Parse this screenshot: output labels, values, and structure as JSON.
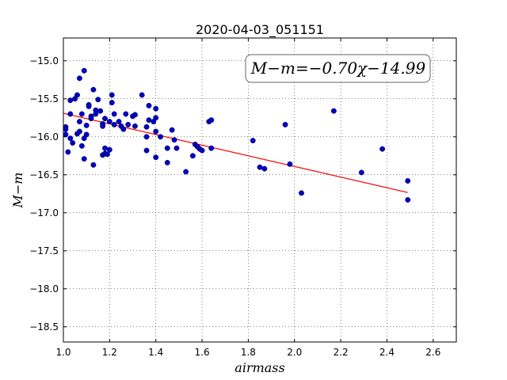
{
  "chart_data": {
    "type": "scatter",
    "title": "2020-04-03_051151",
    "xlabel": "airmass",
    "ylabel": "M−m",
    "xlim": [
      1.0,
      2.7
    ],
    "ylim": [
      -14.7,
      -18.7
    ],
    "y_inverted": true,
    "grid": true,
    "x_ticks": [
      1.0,
      1.2,
      1.4,
      1.6,
      1.8,
      2.0,
      2.2,
      2.4,
      2.6
    ],
    "x_tick_labels": [
      "1.0",
      "1.2",
      "1.4",
      "1.6",
      "1.8",
      "2.0",
      "2.2",
      "2.4",
      "2.6"
    ],
    "y_ticks": [
      -15.0,
      -15.5,
      -16.0,
      -16.5,
      -17.0,
      -17.5,
      -18.0,
      -18.5
    ],
    "y_tick_labels": [
      "−15.0",
      "−15.5",
      "−16.0",
      "−16.5",
      "−17.0",
      "−17.5",
      "−18.0",
      "−18.5"
    ],
    "annotation": "M−m=−0.70χ−14.99",
    "fit": {
      "slope": -0.7,
      "intercept": -14.99,
      "x_range": [
        1.0,
        2.49
      ],
      "color": "#ff0000"
    },
    "series": [
      {
        "marker_color": "#0000cc",
        "points": [
          [
            1.01,
            -15.87
          ],
          [
            1.01,
            -15.9
          ],
          [
            1.01,
            -15.97
          ],
          [
            1.02,
            -16.2
          ],
          [
            1.03,
            -15.52
          ],
          [
            1.03,
            -15.7
          ],
          [
            1.03,
            -16.02
          ],
          [
            1.04,
            -16.08
          ],
          [
            1.05,
            -15.5
          ],
          [
            1.06,
            -15.96
          ],
          [
            1.06,
            -15.45
          ],
          [
            1.07,
            -15.23
          ],
          [
            1.07,
            -15.8
          ],
          [
            1.07,
            -15.93
          ],
          [
            1.08,
            -16.12
          ],
          [
            1.08,
            -15.7
          ],
          [
            1.09,
            -16.02
          ],
          [
            1.09,
            -16.29
          ],
          [
            1.09,
            -15.13
          ],
          [
            1.1,
            -15.85
          ],
          [
            1.1,
            -15.97
          ],
          [
            1.11,
            -15.58
          ],
          [
            1.11,
            -15.6
          ],
          [
            1.12,
            -15.73
          ],
          [
            1.12,
            -15.76
          ],
          [
            1.13,
            -15.38
          ],
          [
            1.13,
            -16.37
          ],
          [
            1.14,
            -15.65
          ],
          [
            1.14,
            -15.7
          ],
          [
            1.15,
            -15.51
          ],
          [
            1.16,
            -15.66
          ],
          [
            1.17,
            -15.83
          ],
          [
            1.17,
            -15.86
          ],
          [
            1.17,
            -16.24
          ],
          [
            1.18,
            -15.76
          ],
          [
            1.18,
            -16.15
          ],
          [
            1.18,
            -16.22
          ],
          [
            1.19,
            -16.23
          ],
          [
            1.2,
            -16.17
          ],
          [
            1.2,
            -15.8
          ],
          [
            1.21,
            -15.45
          ],
          [
            1.21,
            -15.55
          ],
          [
            1.22,
            -15.7
          ],
          [
            1.22,
            -15.84
          ],
          [
            1.24,
            -15.8
          ],
          [
            1.25,
            -15.86
          ],
          [
            1.26,
            -15.9
          ],
          [
            1.27,
            -15.7
          ],
          [
            1.28,
            -15.84
          ],
          [
            1.3,
            -15.73
          ],
          [
            1.31,
            -15.71
          ],
          [
            1.31,
            -15.86
          ],
          [
            1.34,
            -15.45
          ],
          [
            1.36,
            -16.0
          ],
          [
            1.36,
            -15.87
          ],
          [
            1.36,
            -16.18
          ],
          [
            1.37,
            -15.59
          ],
          [
            1.37,
            -15.78
          ],
          [
            1.39,
            -15.8
          ],
          [
            1.4,
            -15.75
          ],
          [
            1.4,
            -15.63
          ],
          [
            1.4,
            -15.93
          ],
          [
            1.4,
            -16.27
          ],
          [
            1.42,
            -16.0
          ],
          [
            1.45,
            -16.15
          ],
          [
            1.45,
            -16.34
          ],
          [
            1.47,
            -15.91
          ],
          [
            1.48,
            -16.04
          ],
          [
            1.49,
            -16.15
          ],
          [
            1.53,
            -16.46
          ],
          [
            1.56,
            -16.25
          ],
          [
            1.57,
            -16.1
          ],
          [
            1.58,
            -16.13
          ],
          [
            1.59,
            -16.16
          ],
          [
            1.6,
            -16.18
          ],
          [
            1.63,
            -15.8
          ],
          [
            1.64,
            -15.78
          ],
          [
            1.64,
            -16.15
          ],
          [
            1.82,
            -16.05
          ],
          [
            1.85,
            -16.4
          ],
          [
            1.87,
            -16.42
          ],
          [
            1.96,
            -15.84
          ],
          [
            1.98,
            -16.36
          ],
          [
            2.03,
            -16.74
          ],
          [
            2.17,
            -15.66
          ],
          [
            2.29,
            -16.47
          ],
          [
            2.38,
            -16.16
          ],
          [
            2.49,
            -16.58
          ],
          [
            2.49,
            -16.83
          ]
        ]
      }
    ]
  }
}
